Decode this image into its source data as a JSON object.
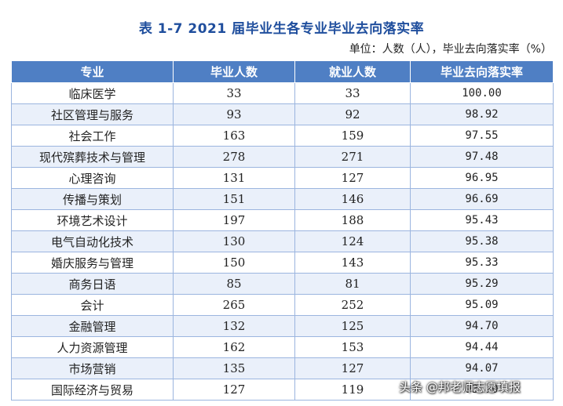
{
  "title": "表 1-7  2021 届毕业生各专业毕业去向落实率",
  "unit_note": "单位：人数（人），毕业去向落实率（%）",
  "table": {
    "headers": [
      "专业",
      "毕业人数",
      "就业人数",
      "毕业去向落实率"
    ],
    "rows": [
      [
        "临床医学",
        "33",
        "33",
        "100.00"
      ],
      [
        "社区管理与服务",
        "93",
        "92",
        "98.92"
      ],
      [
        "社会工作",
        "163",
        "159",
        "97.55"
      ],
      [
        "现代殡葬技术与管理",
        "278",
        "271",
        "97.48"
      ],
      [
        "心理咨询",
        "131",
        "127",
        "96.95"
      ],
      [
        "传播与策划",
        "151",
        "146",
        "96.69"
      ],
      [
        "环境艺术设计",
        "197",
        "188",
        "95.43"
      ],
      [
        "电气自动化技术",
        "130",
        "124",
        "95.38"
      ],
      [
        "婚庆服务与管理",
        "150",
        "143",
        "95.33"
      ],
      [
        "商务日语",
        "85",
        "81",
        "95.29"
      ],
      [
        "会计",
        "265",
        "252",
        "95.09"
      ],
      [
        "金融管理",
        "132",
        "125",
        "94.70"
      ],
      [
        "人力资源管理",
        "162",
        "153",
        "94.44"
      ],
      [
        "市场营销",
        "135",
        "127",
        "94.07"
      ],
      [
        "国际经济与贸易",
        "127",
        "119",
        "93.70"
      ]
    ]
  },
  "watermark": "头条 @邦老师志愿填报",
  "colors": {
    "title": "#1f4e9d",
    "header_bg": "#4f7fc4",
    "row_alt_bg": "#eaf0fa",
    "border": "#9bb5df"
  }
}
